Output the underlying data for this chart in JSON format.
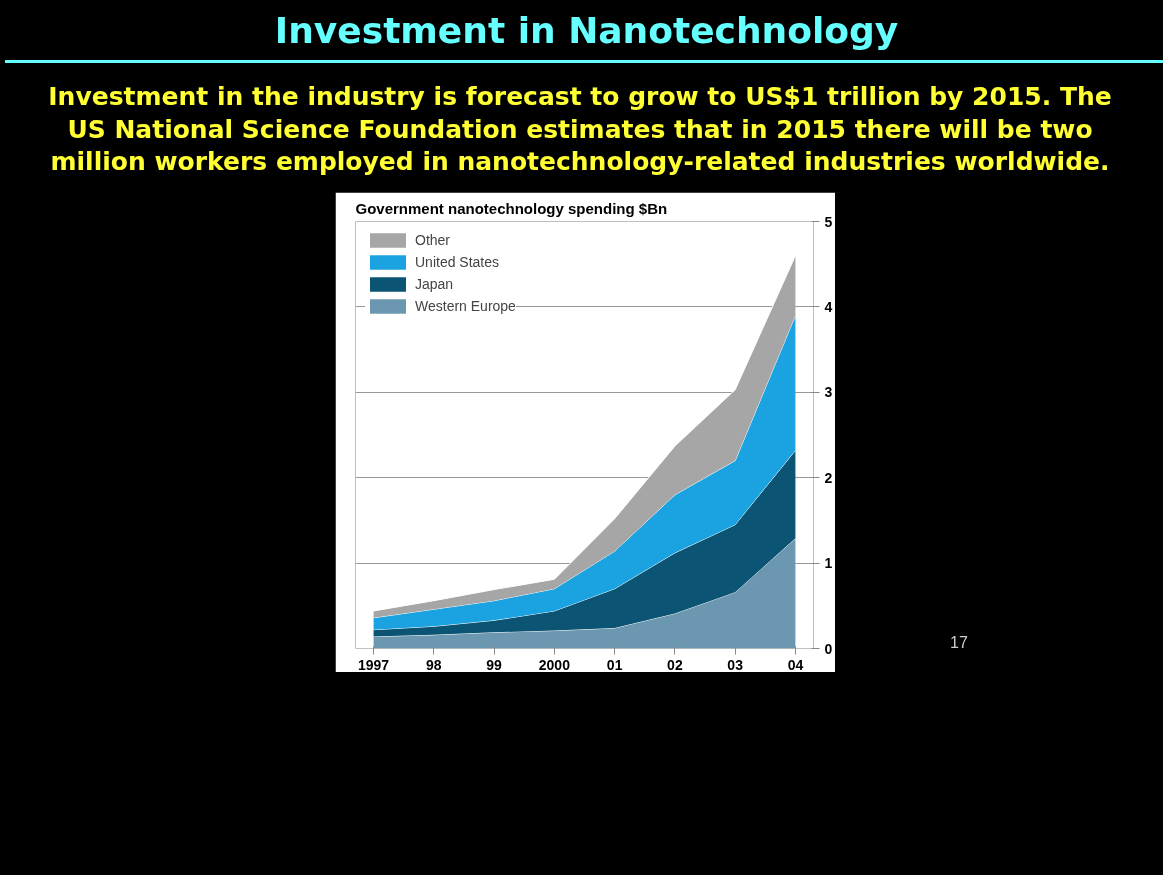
{
  "chart_data": {
    "type": "area",
    "stacked": true,
    "title": "Investment in Nanotechnology",
    "subtitle": "Investment in the industry is forecast to grow to US$1 trillion by 2015. The US National Science Foundation estimates that in 2015 there will be two million workers employed in nanotechnology-related industries worldwide.",
    "ylabel": "Government nanotechnology spending $Bn",
    "annotations": [
      "17"
    ],
    "categories": [
      "1997",
      "98",
      "99",
      "2000",
      "01",
      "02",
      "03",
      "04"
    ],
    "series": [
      {
        "name": "Western Europe",
        "color": "#6b97b0",
        "values": [
          0.14,
          0.16,
          0.19,
          0.21,
          0.24,
          0.41,
          0.66,
          1.29
        ]
      },
      {
        "name": "Japan",
        "color": "#0b5473",
        "values": [
          0.08,
          0.1,
          0.14,
          0.23,
          0.46,
          0.71,
          0.79,
          1.03
        ]
      },
      {
        "name": "United States",
        "color": "#1aa3e0",
        "values": [
          0.14,
          0.2,
          0.23,
          0.26,
          0.44,
          0.68,
          0.75,
          1.58
        ]
      },
      {
        "name": "Other",
        "color": "#a6a6a6",
        "values": [
          0.08,
          0.1,
          0.13,
          0.11,
          0.38,
          0.57,
          0.83,
          0.7
        ]
      }
    ],
    "ylim": [
      0,
      5
    ],
    "yticks": [
      0,
      1,
      2,
      3,
      4,
      5
    ],
    "grid": "y",
    "legend": "top left"
  }
}
